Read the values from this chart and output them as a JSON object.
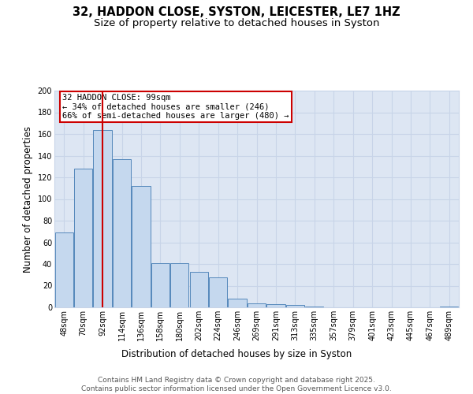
{
  "title_line1": "32, HADDON CLOSE, SYSTON, LEICESTER, LE7 1HZ",
  "title_line2": "Size of property relative to detached houses in Syston",
  "xlabel": "Distribution of detached houses by size in Syston",
  "ylabel": "Number of detached properties",
  "categories": [
    "48sqm",
    "70sqm",
    "92sqm",
    "114sqm",
    "136sqm",
    "158sqm",
    "180sqm",
    "202sqm",
    "224sqm",
    "246sqm",
    "269sqm",
    "291sqm",
    "313sqm",
    "335sqm",
    "357sqm",
    "379sqm",
    "401sqm",
    "423sqm",
    "445sqm",
    "467sqm",
    "489sqm"
  ],
  "values": [
    69,
    128,
    164,
    137,
    112,
    41,
    41,
    33,
    28,
    8,
    4,
    3,
    2,
    1,
    0,
    0,
    0,
    0,
    0,
    0,
    1
  ],
  "bar_color": "#c5d8ee",
  "bar_edge_color": "#5588bb",
  "grid_color": "#c8d4e8",
  "bg_color": "#dde6f3",
  "vline_color": "#cc0000",
  "vline_x_index": 2,
  "annotation_text": "32 HADDON CLOSE: 99sqm\n← 34% of detached houses are smaller (246)\n66% of semi-detached houses are larger (480) →",
  "annotation_box_color": "#cc0000",
  "ylim": [
    0,
    200
  ],
  "yticks": [
    0,
    20,
    40,
    60,
    80,
    100,
    120,
    140,
    160,
    180,
    200
  ],
  "footer_text": "Contains HM Land Registry data © Crown copyright and database right 2025.\nContains public sector information licensed under the Open Government Licence v3.0.",
  "title_fontsize": 10.5,
  "subtitle_fontsize": 9.5,
  "axis_label_fontsize": 8.5,
  "tick_fontsize": 7,
  "annotation_fontsize": 7.5,
  "footer_fontsize": 6.5
}
